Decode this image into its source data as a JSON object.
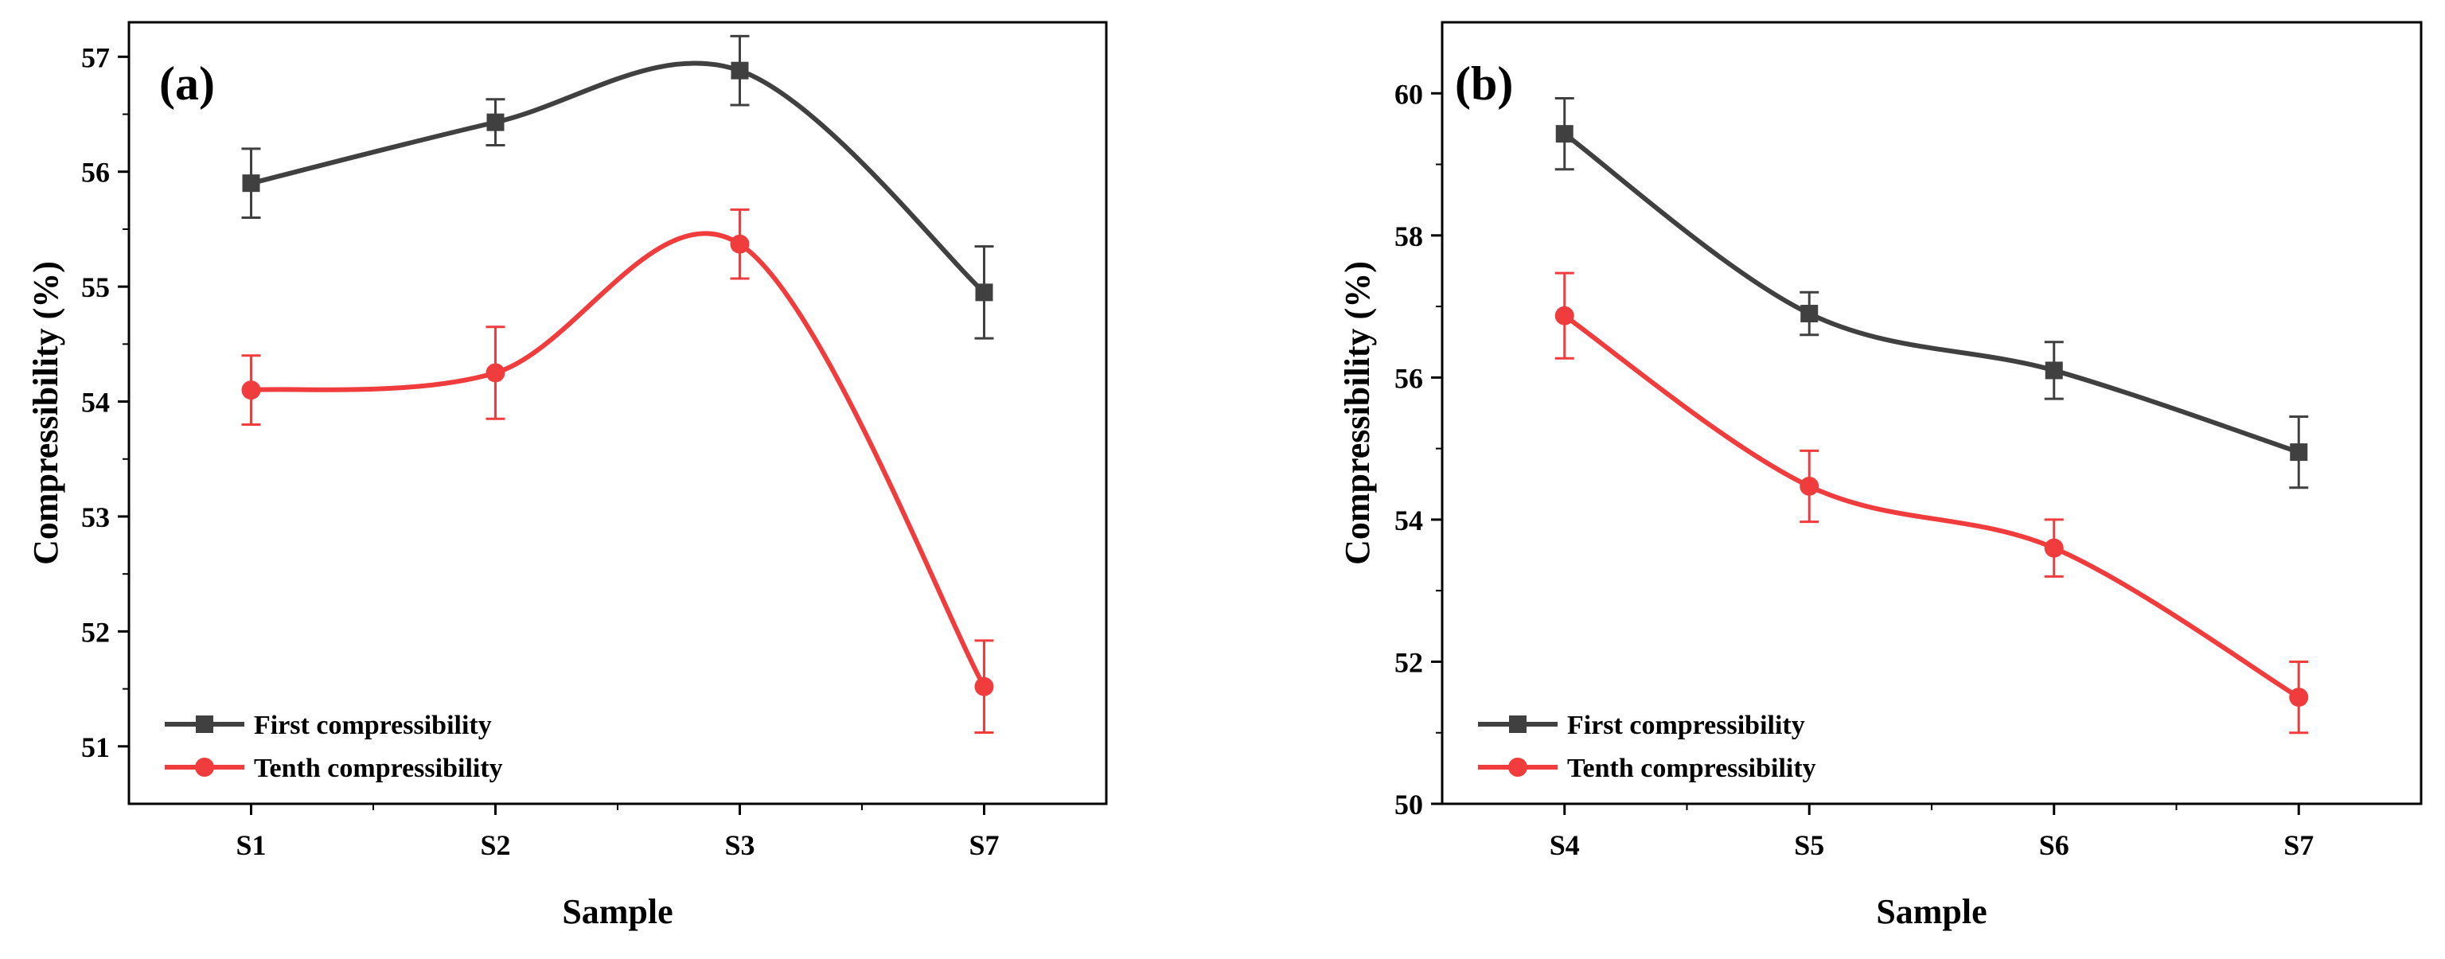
{
  "chart_data": [
    {
      "type": "line",
      "panel_label": "(a)",
      "categories": [
        "S1",
        "S2",
        "S3",
        "S7"
      ],
      "xlabel": "Sample",
      "ylabel": "Compressibility (%)",
      "ylim": [
        50.5,
        57.3
      ],
      "yticks": [
        51,
        52,
        53,
        54,
        55,
        56,
        57
      ],
      "legend_position": "bottom-left",
      "series": [
        {
          "name": "First compressibility",
          "color": "#404040",
          "marker": "square",
          "values": [
            55.9,
            56.43,
            56.88,
            54.95
          ],
          "errors": [
            0.3,
            0.2,
            0.3,
            0.4
          ]
        },
        {
          "name": "Tenth compressibility",
          "color": "#f03c3c",
          "marker": "circle",
          "values": [
            54.1,
            54.25,
            55.37,
            51.52
          ],
          "errors": [
            0.3,
            0.4,
            0.3,
            0.4
          ]
        }
      ]
    },
    {
      "type": "line",
      "panel_label": "(b)",
      "categories": [
        "S4",
        "S5",
        "S6",
        "S7"
      ],
      "xlabel": "Sample",
      "ylabel": "Compressibility (%)",
      "ylim": [
        50,
        61
      ],
      "yticks": [
        50,
        52,
        54,
        56,
        58,
        60
      ],
      "legend_position": "bottom-left",
      "series": [
        {
          "name": "First compressibility",
          "color": "#404040",
          "marker": "square",
          "values": [
            59.43,
            56.9,
            56.1,
            54.95
          ],
          "errors": [
            0.5,
            0.3,
            0.4,
            0.5
          ]
        },
        {
          "name": "Tenth compressibility",
          "color": "#f03c3c",
          "marker": "circle",
          "values": [
            56.87,
            54.47,
            53.6,
            51.5
          ],
          "errors": [
            0.6,
            0.5,
            0.4,
            0.5
          ]
        }
      ]
    }
  ]
}
